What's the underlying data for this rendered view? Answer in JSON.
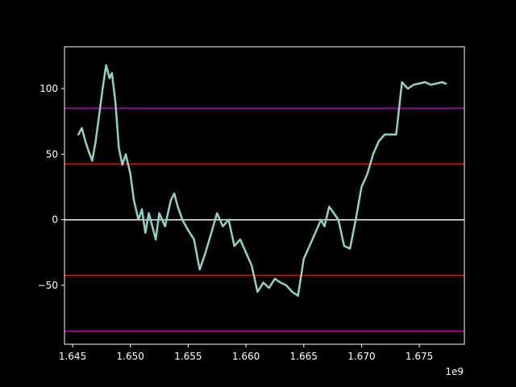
{
  "chart_data": {
    "type": "line",
    "title": "",
    "xlabel": "",
    "ylabel": "",
    "x_offset_label": "1e9",
    "xlim": [
      1.6443,
      1.6789
    ],
    "ylim": [
      -95,
      132
    ],
    "grid": false,
    "legend": "none",
    "x_ticks": [
      {
        "value": 1.645,
        "label": "1.645"
      },
      {
        "value": 1.65,
        "label": "1.650"
      },
      {
        "value": 1.655,
        "label": "1.655"
      },
      {
        "value": 1.66,
        "label": "1.660"
      },
      {
        "value": 1.665,
        "label": "1.665"
      },
      {
        "value": 1.67,
        "label": "1.670"
      },
      {
        "value": 1.675,
        "label": "1.675"
      }
    ],
    "y_ticks": [
      {
        "value": 100,
        "label": "100"
      },
      {
        "value": 50,
        "label": "50"
      },
      {
        "value": 0,
        "label": "0"
      },
      {
        "value": -50,
        "label": "−50"
      }
    ],
    "hlines": [
      {
        "y": 85,
        "color": "#bf00bf"
      },
      {
        "y": 42.5,
        "color": "#ff0000"
      },
      {
        "y": 0,
        "color": "#ffffff"
      },
      {
        "y": -42.5,
        "color": "#ff0000"
      },
      {
        "y": -85,
        "color": "#bf00bf"
      }
    ],
    "series": [
      {
        "color": "#8dd3c7",
        "x": [
          1.6455,
          1.6458,
          1.6461,
          1.6464,
          1.6467,
          1.647,
          1.6473,
          1.6476,
          1.6479,
          1.6482,
          1.6484,
          1.6487,
          1.649,
          1.6493,
          1.6496,
          1.65,
          1.6503,
          1.6507,
          1.651,
          1.6513,
          1.6516,
          1.6519,
          1.6522,
          1.6525,
          1.653,
          1.6535,
          1.6538,
          1.6541,
          1.6545,
          1.655,
          1.6555,
          1.656,
          1.6565,
          1.657,
          1.6575,
          1.658,
          1.6585,
          1.659,
          1.6595,
          1.66,
          1.6605,
          1.661,
          1.6615,
          1.662,
          1.6625,
          1.663,
          1.6635,
          1.664,
          1.6645,
          1.665,
          1.6655,
          1.666,
          1.6665,
          1.6668,
          1.6672,
          1.6676,
          1.668,
          1.6685,
          1.669,
          1.6695,
          1.67,
          1.6705,
          1.671,
          1.6715,
          1.672,
          1.6725,
          1.673,
          1.6735,
          1.674,
          1.6745,
          1.675,
          1.6755,
          1.676,
          1.6765,
          1.677,
          1.6772,
          1.6773
        ],
        "y": [
          65,
          70,
          60,
          52,
          45,
          60,
          80,
          100,
          118,
          108,
          112,
          90,
          55,
          42,
          50,
          35,
          15,
          0,
          8,
          -10,
          5,
          -5,
          -15,
          5,
          -5,
          15,
          20,
          10,
          0,
          -8,
          -15,
          -38,
          -25,
          -10,
          5,
          -5,
          0,
          -20,
          -15,
          -25,
          -35,
          -55,
          -48,
          -52,
          -45,
          -48,
          -50,
          -55,
          -58,
          -30,
          -20,
          -10,
          0,
          -5,
          10,
          5,
          0,
          -20,
          -22,
          0,
          25,
          35,
          50,
          60,
          65,
          65,
          65,
          105,
          100,
          103,
          104,
          105,
          103,
          104,
          105,
          104,
          104
        ]
      }
    ]
  }
}
